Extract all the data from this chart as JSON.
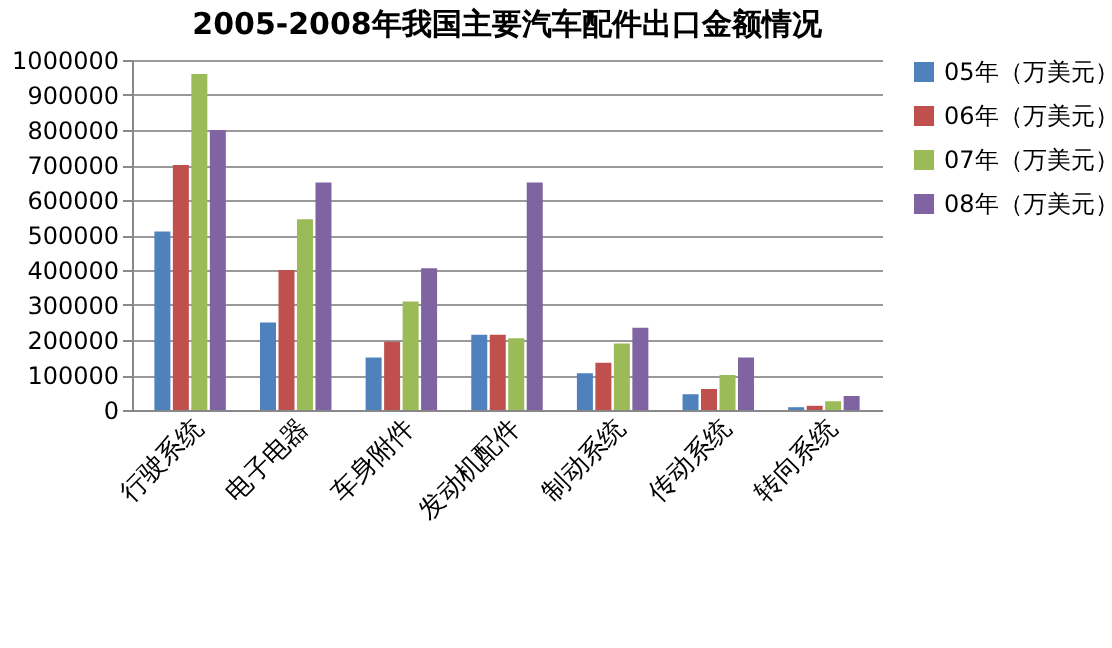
{
  "chart_data": {
    "type": "bar",
    "title": "2005-2008年我国主要汽车配件出口金额情况",
    "categories": [
      "行驶系统",
      "电子电器",
      "车身附件",
      "发动机配件",
      "制动系统",
      "传动系统",
      "转向系统"
    ],
    "series": [
      {
        "name": "05年（万美元）",
        "color": "#4f81bd",
        "values": [
          510000,
          250000,
          150000,
          215000,
          105000,
          45000,
          8000
        ]
      },
      {
        "name": "06年（万美元）",
        "color": "#c0504d",
        "values": [
          700000,
          400000,
          195000,
          215000,
          135000,
          60000,
          12000
        ]
      },
      {
        "name": "07年（万美元）",
        "color": "#9bbb59",
        "values": [
          960000,
          545000,
          310000,
          205000,
          190000,
          100000,
          25000
        ]
      },
      {
        "name": "08年（万美元）",
        "color": "#8064a2",
        "values": [
          800000,
          650000,
          405000,
          650000,
          235000,
          150000,
          40000
        ]
      }
    ],
    "ylim": [
      0,
      1000000
    ],
    "yticks": [
      0,
      100000,
      200000,
      300000,
      400000,
      500000,
      600000,
      700000,
      800000,
      900000,
      1000000
    ],
    "grid": "y",
    "legend": "right"
  }
}
